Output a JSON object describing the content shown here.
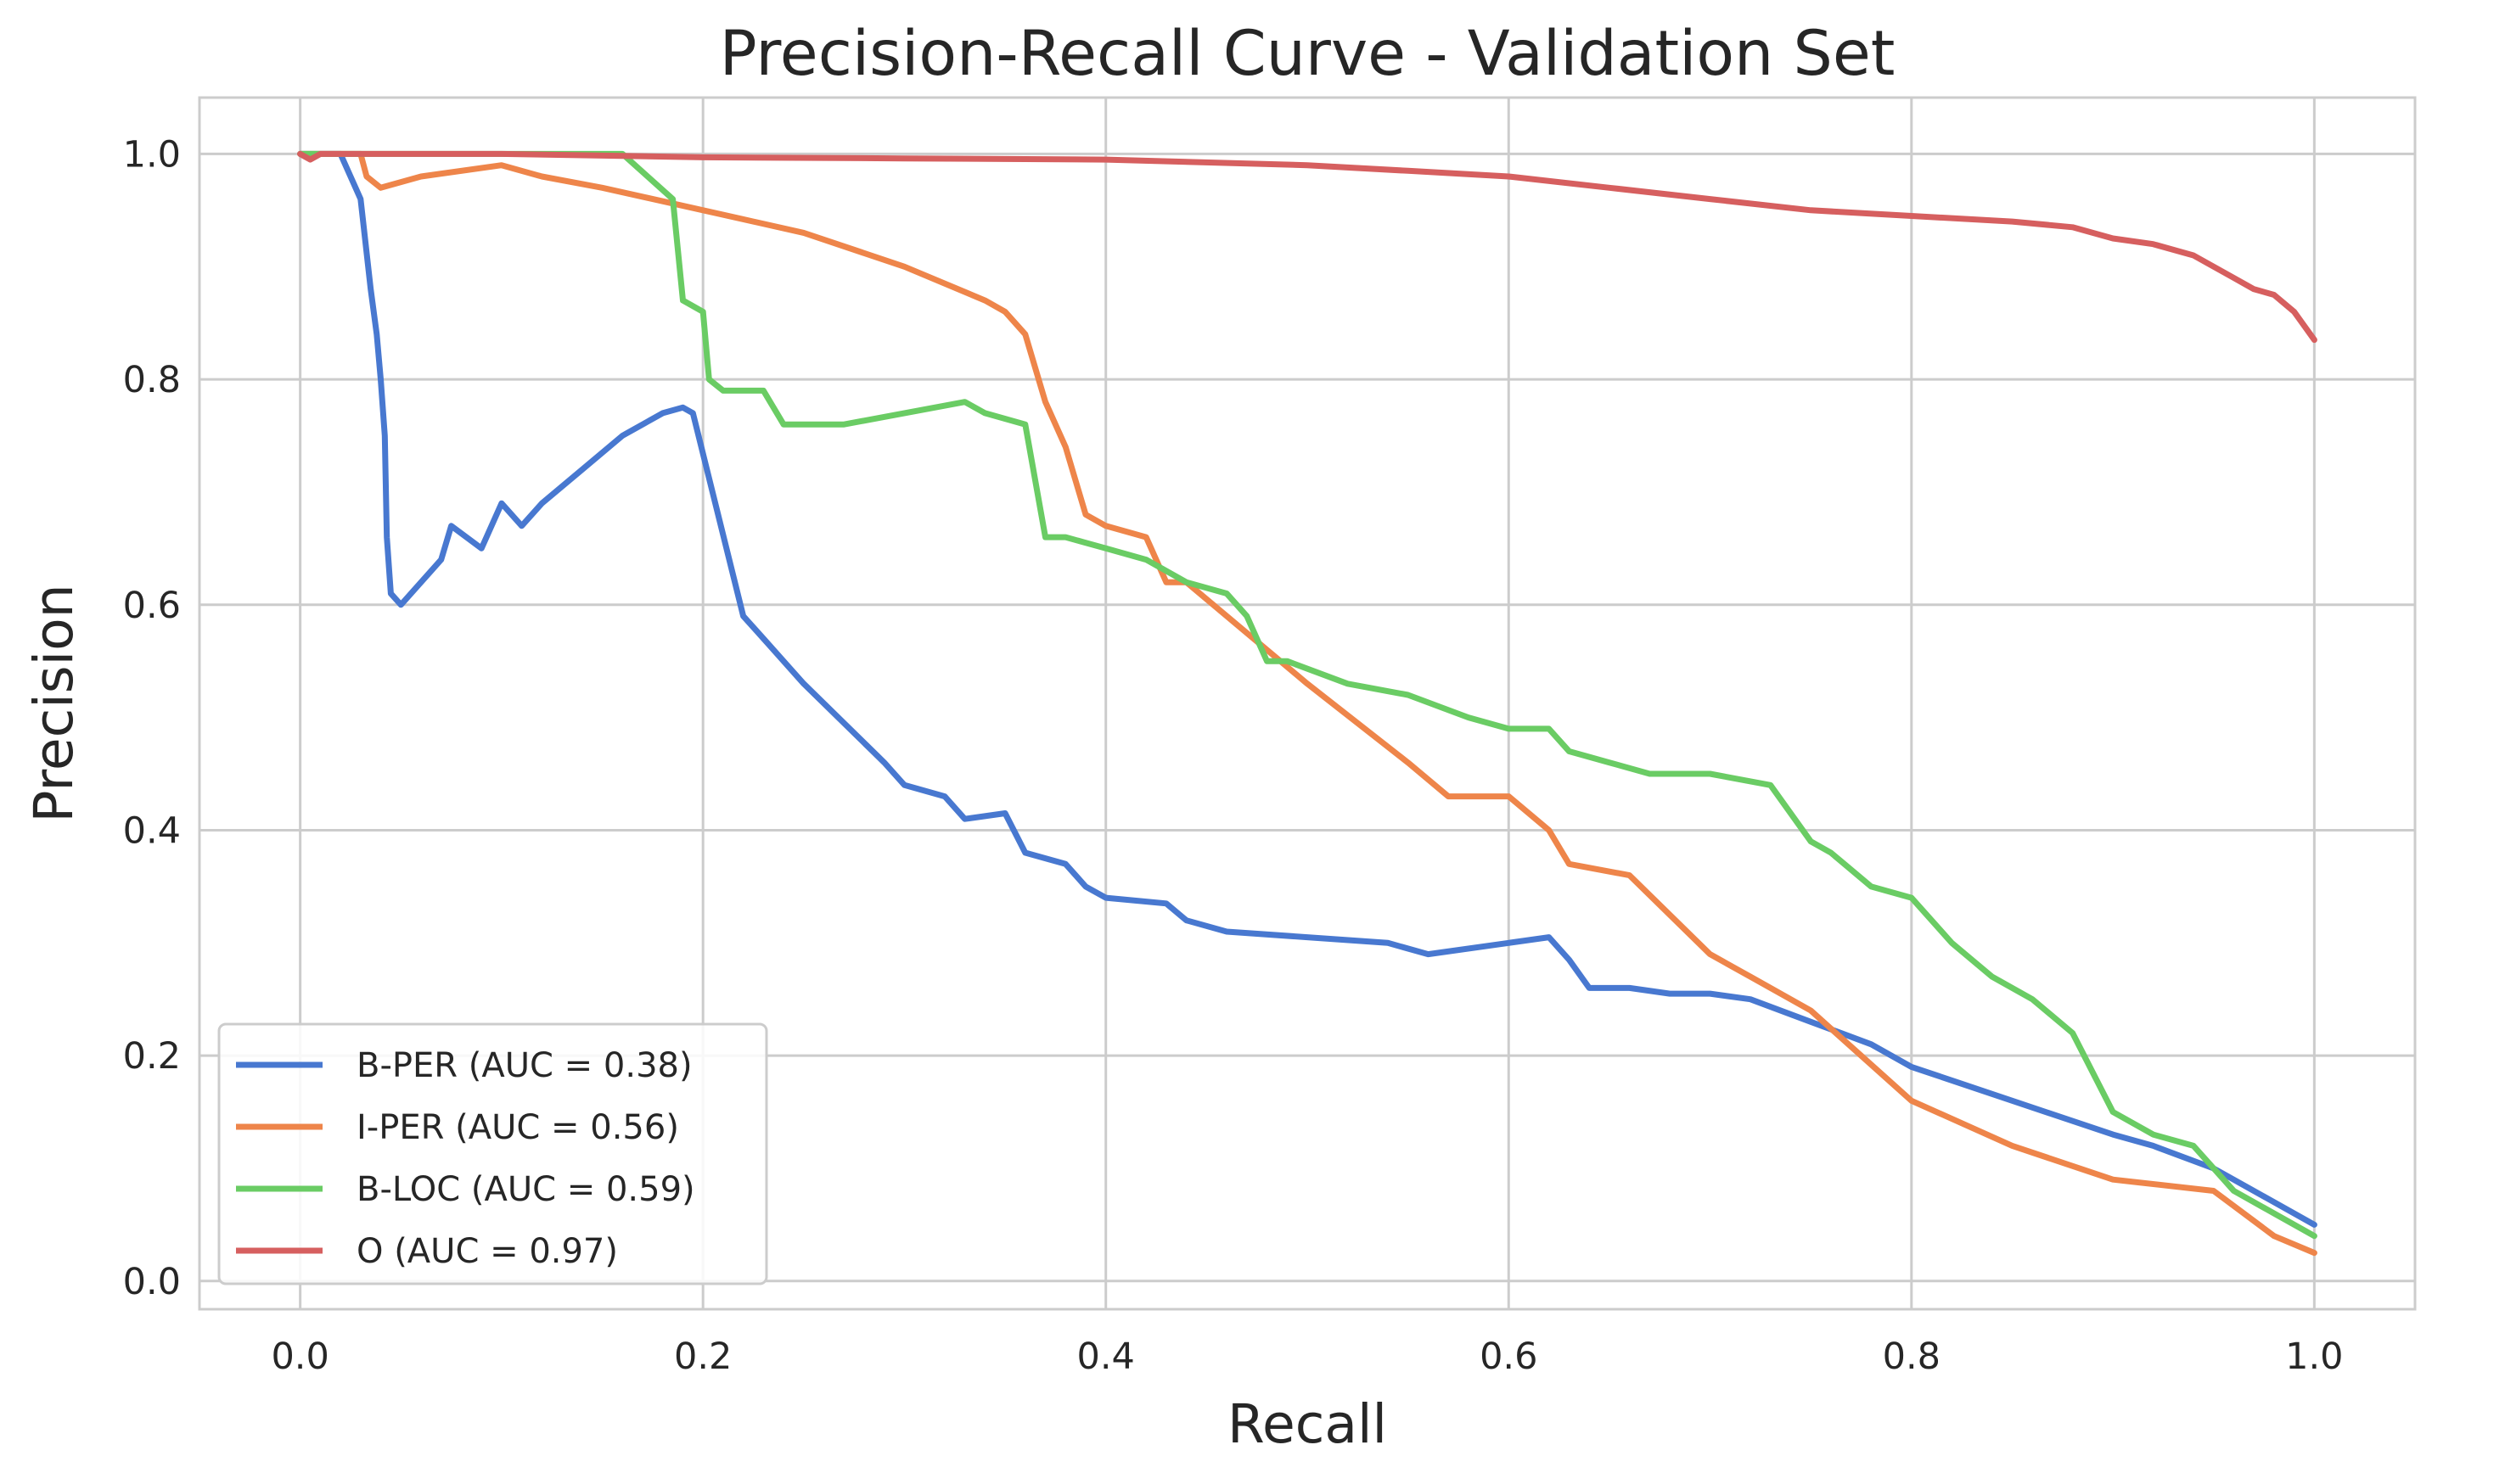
{
  "chart_data": {
    "type": "line",
    "title": "Precision-Recall Curve - Validation Set",
    "xlabel": "Recall",
    "ylabel": "Precision",
    "xlim": [
      -0.05,
      1.05
    ],
    "ylim": [
      -0.025,
      1.05
    ],
    "xticks": [
      0.0,
      0.2,
      0.4,
      0.6,
      0.8,
      1.0
    ],
    "xtick_labels": [
      "0.0",
      "0.2",
      "0.4",
      "0.6",
      "0.8",
      "1.0"
    ],
    "yticks": [
      0.0,
      0.2,
      0.4,
      0.6,
      0.8,
      1.0
    ],
    "ytick_labels": [
      "0.0",
      "0.2",
      "0.4",
      "0.6",
      "0.8",
      "1.0"
    ],
    "grid": true,
    "legend_position": "lower-left",
    "series": [
      {
        "name": "B-PER (AUC = 0.38)",
        "color": "#4878d0",
        "x": [
          0.0,
          0.02,
          0.03,
          0.035,
          0.038,
          0.04,
          0.042,
          0.043,
          0.045,
          0.05,
          0.06,
          0.07,
          0.075,
          0.09,
          0.1,
          0.11,
          0.12,
          0.14,
          0.16,
          0.18,
          0.19,
          0.195,
          0.22,
          0.23,
          0.25,
          0.29,
          0.3,
          0.32,
          0.33,
          0.35,
          0.36,
          0.38,
          0.39,
          0.4,
          0.43,
          0.44,
          0.46,
          0.5,
          0.54,
          0.56,
          0.6,
          0.62,
          0.63,
          0.64,
          0.66,
          0.68,
          0.7,
          0.72,
          0.75,
          0.78,
          0.8,
          0.85,
          0.9,
          0.92,
          0.95,
          1.0
        ],
        "y": [
          1.0,
          1.0,
          0.96,
          0.88,
          0.84,
          0.8,
          0.75,
          0.66,
          0.61,
          0.6,
          0.62,
          0.64,
          0.67,
          0.65,
          0.69,
          0.67,
          0.69,
          0.72,
          0.75,
          0.77,
          0.775,
          0.77,
          0.59,
          0.57,
          0.53,
          0.46,
          0.44,
          0.43,
          0.41,
          0.415,
          0.38,
          0.37,
          0.35,
          0.34,
          0.335,
          0.32,
          0.31,
          0.305,
          0.3,
          0.29,
          0.3,
          0.305,
          0.285,
          0.26,
          0.26,
          0.255,
          0.255,
          0.25,
          0.23,
          0.21,
          0.19,
          0.16,
          0.13,
          0.12,
          0.1,
          0.05
        ]
      },
      {
        "name": "I-PER (AUC = 0.56)",
        "color": "#ee854a",
        "x": [
          0.0,
          0.03,
          0.033,
          0.04,
          0.06,
          0.1,
          0.12,
          0.15,
          0.2,
          0.25,
          0.3,
          0.34,
          0.35,
          0.36,
          0.37,
          0.38,
          0.39,
          0.4,
          0.42,
          0.43,
          0.44,
          0.5,
          0.55,
          0.57,
          0.6,
          0.62,
          0.63,
          0.66,
          0.7,
          0.72,
          0.75,
          0.8,
          0.85,
          0.9,
          0.95,
          0.98,
          1.0
        ],
        "y": [
          1.0,
          1.0,
          0.98,
          0.97,
          0.98,
          0.99,
          0.98,
          0.97,
          0.95,
          0.93,
          0.9,
          0.87,
          0.86,
          0.84,
          0.78,
          0.74,
          0.68,
          0.67,
          0.66,
          0.62,
          0.62,
          0.53,
          0.46,
          0.43,
          0.43,
          0.4,
          0.37,
          0.36,
          0.29,
          0.27,
          0.24,
          0.16,
          0.12,
          0.09,
          0.08,
          0.04,
          0.025
        ]
      },
      {
        "name": "B-LOC (AUC = 0.59)",
        "color": "#6acc64",
        "x": [
          0.0,
          0.02,
          0.16,
          0.185,
          0.19,
          0.2,
          0.203,
          0.21,
          0.23,
          0.24,
          0.27,
          0.33,
          0.34,
          0.36,
          0.37,
          0.38,
          0.4,
          0.42,
          0.44,
          0.46,
          0.47,
          0.48,
          0.49,
          0.52,
          0.55,
          0.58,
          0.6,
          0.62,
          0.63,
          0.65,
          0.67,
          0.7,
          0.73,
          0.75,
          0.76,
          0.78,
          0.8,
          0.82,
          0.84,
          0.86,
          0.88,
          0.9,
          0.92,
          0.94,
          0.96,
          0.98,
          1.0
        ],
        "y": [
          1.0,
          1.0,
          1.0,
          0.96,
          0.87,
          0.86,
          0.8,
          0.79,
          0.79,
          0.76,
          0.76,
          0.78,
          0.77,
          0.76,
          0.66,
          0.66,
          0.65,
          0.64,
          0.62,
          0.61,
          0.59,
          0.55,
          0.55,
          0.53,
          0.52,
          0.5,
          0.49,
          0.49,
          0.47,
          0.46,
          0.45,
          0.45,
          0.44,
          0.39,
          0.38,
          0.35,
          0.34,
          0.3,
          0.27,
          0.25,
          0.22,
          0.15,
          0.13,
          0.12,
          0.08,
          0.06,
          0.04
        ]
      },
      {
        "name": "O (AUC = 0.97)",
        "color": "#d65f5f",
        "x": [
          0.0,
          0.005,
          0.01,
          0.1,
          0.2,
          0.3,
          0.4,
          0.5,
          0.55,
          0.6,
          0.65,
          0.7,
          0.75,
          0.8,
          0.85,
          0.88,
          0.9,
          0.92,
          0.94,
          0.96,
          0.97,
          0.98,
          0.99,
          1.0
        ],
        "y": [
          1.0,
          0.995,
          1.0,
          1.0,
          0.997,
          0.996,
          0.995,
          0.99,
          0.985,
          0.98,
          0.97,
          0.96,
          0.95,
          0.945,
          0.94,
          0.935,
          0.925,
          0.92,
          0.91,
          0.89,
          0.88,
          0.875,
          0.86,
          0.835
        ]
      }
    ]
  }
}
